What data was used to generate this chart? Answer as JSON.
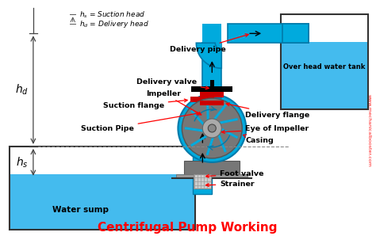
{
  "title": "Centrifugal Pump Working",
  "title_color": "#FF0000",
  "title_fontsize": 11,
  "bg_color": "#FFFFFF",
  "pipe_color": "#00AADD",
  "pipe_edge_color": "#007AAA",
  "water_color": "#44BBEE",
  "casing_color": "#888888",
  "casing_dark": "#444444",
  "red_component": "#CC0000",
  "watermark_color": "#FF0000",
  "labels": {
    "delivery_pipe": "Delivery pipe",
    "delivery_valve": "Delivery valve",
    "impeller": "Impeller",
    "suction_flange": "Suction flange",
    "delivery_flange": "Delivery flange",
    "suction_pipe": "Suction Pipe",
    "eye_impeller": "Eye of Impeller",
    "casing": "Casing",
    "foot_valve": "Foot valve",
    "strainer": "Strainer",
    "water_sump": "Water sump",
    "overhead_tank": "Over head water tank",
    "hs_label": "$h_s$",
    "hd_label": "$h_d$",
    "legend_hs": "$h_s$ = Suction head",
    "legend_hd": "$h_d$ = Delivery head",
    "watermark": "www.mechanicalbooster.com"
  }
}
